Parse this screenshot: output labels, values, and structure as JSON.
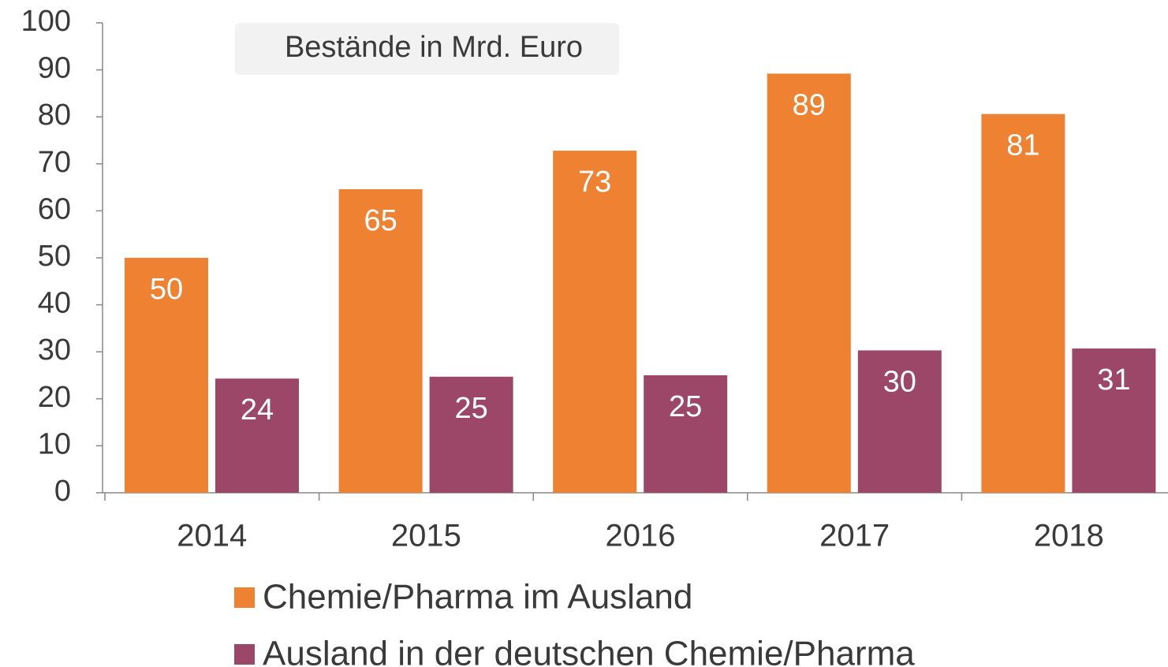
{
  "chart_data": {
    "type": "bar",
    "annotation": "Bestände in Mrd. Euro",
    "categories": [
      "2014",
      "2015",
      "2016",
      "2017",
      "2018"
    ],
    "series": [
      {
        "name": "Chemie/Pharma im Ausland",
        "color": "#ef8133",
        "values": [
          50,
          64.6,
          72.8,
          89.2,
          80.6
        ],
        "value_labels": [
          "50",
          "65",
          "73",
          "89",
          "81"
        ]
      },
      {
        "name": "Ausland in der deutschen Chemie/Pharma",
        "color": "#9c4768",
        "values": [
          24.3,
          24.7,
          25,
          30.3,
          30.7
        ],
        "value_labels": [
          "24",
          "25",
          "25",
          "30",
          "31"
        ]
      }
    ],
    "ylim": [
      0,
      100
    ],
    "yticks": [
      0,
      10,
      20,
      30,
      40,
      50,
      60,
      70,
      80,
      90,
      100
    ]
  }
}
